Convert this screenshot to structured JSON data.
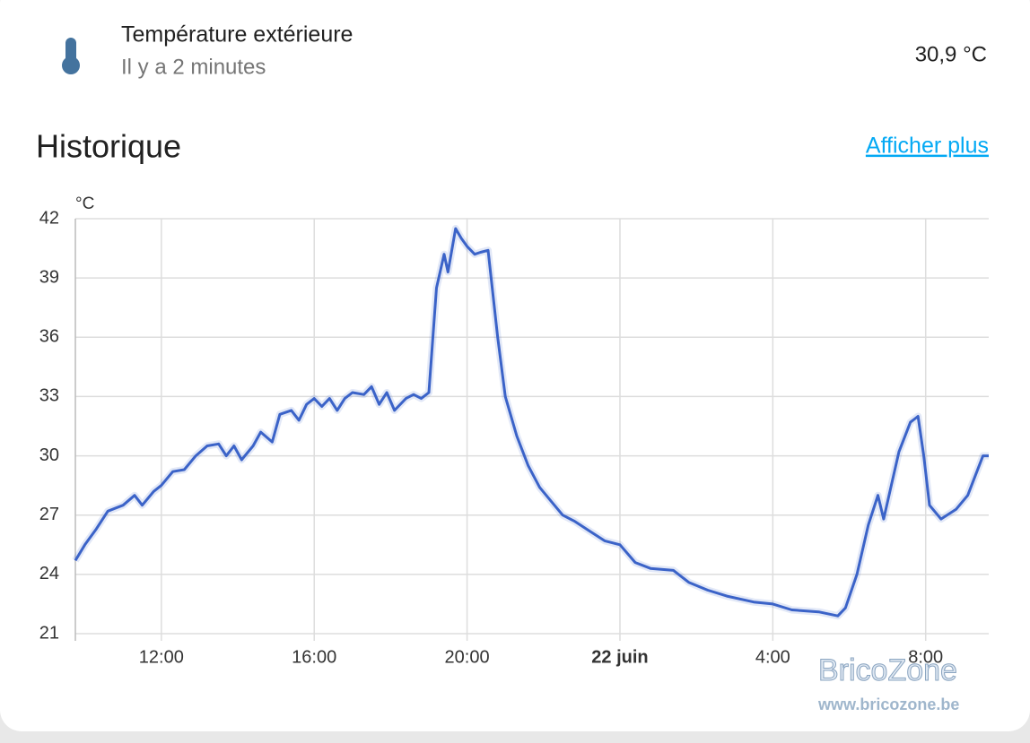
{
  "entity": {
    "name": "Température extérieure",
    "time": "Il y a 2 minutes",
    "state": "30,9 °C"
  },
  "history": {
    "title": "Historique",
    "link": "Afficher plus"
  },
  "chart_data": {
    "type": "line",
    "y_unit": "°C",
    "x": [
      9.75,
      10.0,
      10.3,
      10.6,
      11.0,
      11.3,
      11.5,
      11.8,
      12.0,
      12.3,
      12.6,
      12.9,
      13.2,
      13.5,
      13.7,
      13.9,
      14.1,
      14.4,
      14.6,
      14.9,
      15.1,
      15.4,
      15.6,
      15.8,
      16.0,
      16.2,
      16.4,
      16.6,
      16.8,
      17.0,
      17.3,
      17.5,
      17.7,
      17.9,
      18.1,
      18.4,
      18.6,
      18.8,
      19.0,
      19.2,
      19.4,
      19.5,
      19.7,
      19.85,
      20.0,
      20.2,
      20.35,
      20.55,
      20.8,
      21.0,
      21.3,
      21.6,
      21.9,
      22.2,
      22.5,
      22.8,
      23.2,
      23.6,
      24.0,
      24.4,
      24.8,
      25.4,
      25.8,
      26.3,
      26.8,
      27.5,
      28.0,
      28.5,
      29.2,
      29.7,
      29.9,
      30.2,
      30.5,
      30.75,
      30.9,
      31.1,
      31.3,
      31.6,
      31.8,
      31.95,
      32.1,
      32.4,
      32.8,
      33.1,
      33.3,
      33.5,
      33.65
    ],
    "series": [
      {
        "color": "#3b63c8",
        "values": [
          24.7,
          25.5,
          26.3,
          27.2,
          27.5,
          28.0,
          27.5,
          28.2,
          28.5,
          29.2,
          29.3,
          30.0,
          30.5,
          30.6,
          30.0,
          30.5,
          29.8,
          30.5,
          31.2,
          30.7,
          32.1,
          32.3,
          31.8,
          32.6,
          32.9,
          32.5,
          32.9,
          32.3,
          32.9,
          33.2,
          33.1,
          33.5,
          32.6,
          33.2,
          32.3,
          32.9,
          33.1,
          32.9,
          33.2,
          38.5,
          40.2,
          39.3,
          41.5,
          41.0,
          40.6,
          40.2,
          40.3,
          40.4,
          36.0,
          33.0,
          31.0,
          29.5,
          28.4,
          27.7,
          27.0,
          26.7,
          26.2,
          25.7,
          25.5,
          24.6,
          24.3,
          24.2,
          23.6,
          23.2,
          22.9,
          22.6,
          22.5,
          22.2,
          22.1,
          21.9,
          22.3,
          24.0,
          26.5,
          28.0,
          26.8,
          28.5,
          30.2,
          31.7,
          32.0,
          30.0,
          27.5,
          26.8,
          27.3,
          28.0,
          29.0,
          30.0,
          30.0
        ]
      }
    ],
    "xlim": [
      9.75,
      33.65
    ],
    "xticks": [
      {
        "value": 12,
        "label": "12:00"
      },
      {
        "value": 16,
        "label": "16:00"
      },
      {
        "value": 20,
        "label": "20:00"
      },
      {
        "value": 24,
        "label": "22 juin"
      },
      {
        "value": 28,
        "label": "4:00"
      },
      {
        "value": 32,
        "label": "8:00"
      }
    ],
    "ylim": [
      21,
      42
    ],
    "yticks": [
      21,
      24,
      27,
      30,
      33,
      36,
      39,
      42
    ],
    "grid": true
  },
  "watermark": {
    "title": "BricoZone",
    "url": "www.bricozone.be"
  }
}
